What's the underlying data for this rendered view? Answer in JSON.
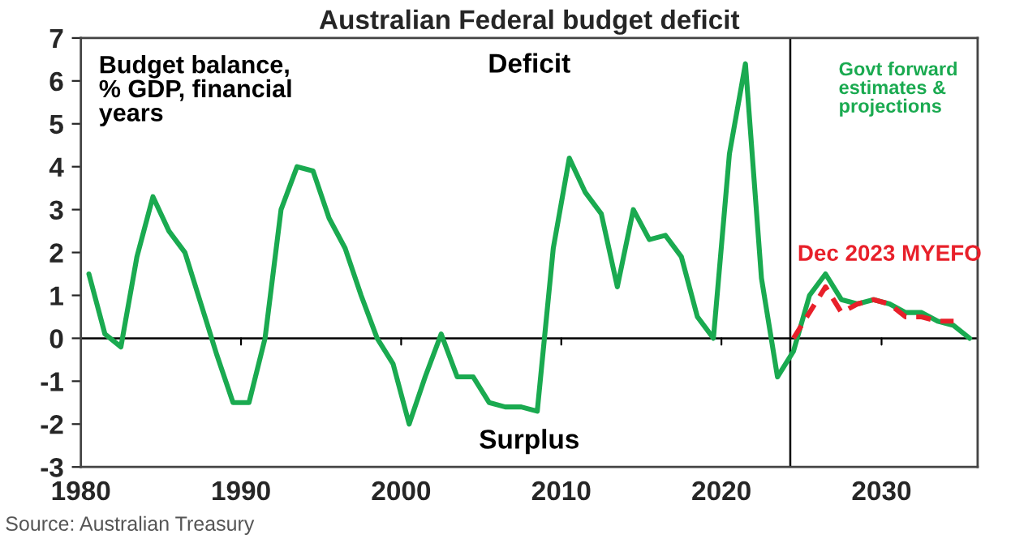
{
  "chart_data": {
    "type": "line",
    "title": "Australian Federal budget deficit",
    "x": [
      1980.5,
      1981.5,
      1982.5,
      1983.5,
      1984.5,
      1985.5,
      1986.5,
      1987.5,
      1988.5,
      1989.5,
      1990.5,
      1991.5,
      1992.5,
      1993.5,
      1994.5,
      1995.5,
      1996.5,
      1997.5,
      1998.5,
      1999.5,
      2000.5,
      2001.5,
      2002.5,
      2003.5,
      2004.5,
      2005.5,
      2006.5,
      2007.5,
      2008.5,
      2009.5,
      2010.5,
      2011.5,
      2012.5,
      2013.5,
      2014.5,
      2015.5,
      2016.5,
      2017.5,
      2018.5,
      2019.5,
      2020.5,
      2021.5,
      2022.5,
      2023.5,
      2024.5,
      2025.5,
      2026.5,
      2027.5,
      2028.5,
      2029.5,
      2030.5,
      2031.5,
      2032.5,
      2033.5,
      2034.5,
      2035.5
    ],
    "series": [
      {
        "color": "#1aaa50",
        "values": [
          1.5,
          0.1,
          -0.2,
          1.9,
          3.3,
          2.5,
          2.0,
          0.8,
          -0.4,
          -1.5,
          -1.5,
          0.0,
          3.0,
          4.0,
          3.9,
          2.8,
          2.1,
          1.0,
          0.0,
          -0.6,
          -2.0,
          -0.9,
          0.1,
          -0.9,
          -0.9,
          -1.5,
          -1.6,
          -1.6,
          -1.7,
          2.1,
          4.2,
          3.4,
          2.9,
          1.2,
          3.0,
          2.3,
          2.4,
          1.9,
          0.5,
          0.0,
          4.3,
          6.4,
          1.4,
          -0.9,
          -0.3,
          1.0,
          1.5,
          0.9,
          0.8,
          0.9,
          0.8,
          0.6,
          0.6,
          0.4,
          0.3,
          0.0
        ]
      },
      {
        "name": "Dec 2023 MYEFO",
        "color": "#e8202a",
        "line_style": "dashed",
        "x": [
          2024.5,
          2025.5,
          2026.5,
          2027.5,
          2028.5,
          2029.5,
          2030.5,
          2031.5,
          2032.5,
          2033.5,
          2034.5
        ],
        "values": [
          0.0,
          0.6,
          1.2,
          0.6,
          0.8,
          0.9,
          0.8,
          0.5,
          0.5,
          0.4,
          0.4
        ]
      }
    ],
    "xlim": [
      1980,
      2036
    ],
    "xticks": [
      1980,
      1990,
      2000,
      2010,
      2020,
      2030
    ],
    "ylim": [
      -3,
      7
    ],
    "yticks": [
      -3,
      -2,
      -1,
      0,
      1,
      2,
      3,
      4,
      5,
      6,
      7
    ],
    "ref_lines": [
      {
        "axis": "y",
        "value": 0,
        "color": "#000000"
      },
      {
        "axis": "x",
        "value": 2024.3,
        "color": "#000000"
      }
    ],
    "annotations": [
      "Budget balance,\n% GDP, financial\nyears",
      "Deficit",
      "Surplus",
      "Govt forward\nestimates &\nprojections",
      "Source: Australian Treasury"
    ],
    "grid": false,
    "legend": false,
    "marker": "none"
  }
}
